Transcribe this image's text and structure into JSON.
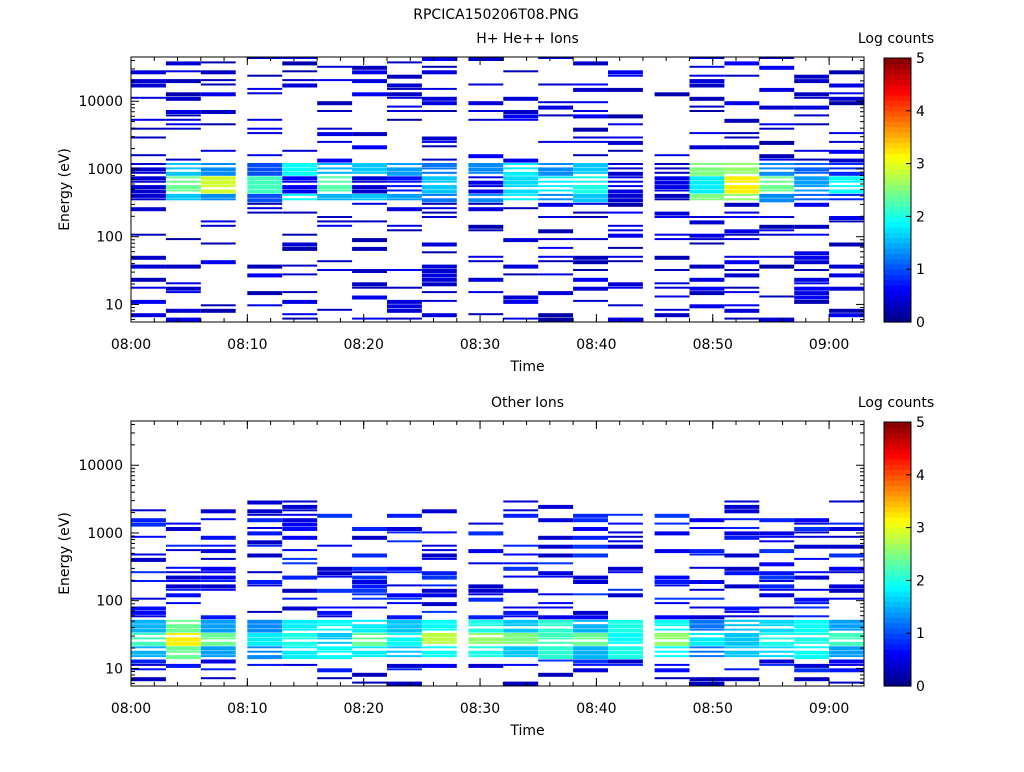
{
  "figure_title": "RPCICA150206T08.PNG",
  "colorscale": [
    "#00007f",
    "#0000ff",
    "#007fff",
    "#00ffff",
    "#7fff7f",
    "#ffff00",
    "#ff7f00",
    "#ff0000",
    "#7f0000"
  ],
  "chart_data": [
    {
      "type": "heatmap",
      "title": "H+ He++ Ions",
      "xlabel": "Time",
      "ylabel": "Energy (eV)",
      "yscale": "log",
      "ylim": [
        5.5,
        45000
      ],
      "xlim": [
        "08:00",
        "09:03"
      ],
      "xticks": [
        "08:00",
        "08:10",
        "08:20",
        "08:30",
        "08:40",
        "08:50",
        "09:00"
      ],
      "yticks": [
        "10",
        "100",
        "1000",
        "10000"
      ],
      "colorbar": {
        "label": "Log counts",
        "range": [
          0,
          5
        ],
        "ticks": [
          "0",
          "1",
          "2",
          "3",
          "4",
          "5"
        ]
      },
      "time_bins": [
        "08:00",
        "08:03",
        "08:06",
        "08:10",
        "08:13",
        "08:16",
        "08:19",
        "08:22",
        "08:25",
        "08:29",
        "08:32",
        "08:35",
        "08:38",
        "08:41",
        "08:45",
        "08:48",
        "08:51",
        "08:54",
        "08:57",
        "09:00"
      ],
      "band_values": [
        [
          0.4,
          1.6,
          1.3,
          1.0,
          1.9,
          1.5,
          1.6,
          1.4,
          1.2,
          1.3,
          1.8,
          1.3,
          1.6,
          0.4,
          0.3,
          2.5,
          2.6,
          1.3,
          1.1,
          0.8
        ],
        [
          0.4,
          2.4,
          2.9,
          2.2,
          0.6,
          2.3,
          0.4,
          0.7,
          1.6,
          0.5,
          1.7,
          1.8,
          2.0,
          0.5,
          0.5,
          1.8,
          3.2,
          2.4,
          1.4,
          1.9
        ]
      ]
    },
    {
      "type": "heatmap",
      "title": "Other Ions",
      "xlabel": "Time",
      "ylabel": "Energy (eV)",
      "yscale": "log",
      "ylim": [
        5.5,
        45000
      ],
      "xlim": [
        "08:00",
        "09:03"
      ],
      "xticks": [
        "08:00",
        "08:10",
        "08:20",
        "08:30",
        "08:40",
        "08:50",
        "09:00"
      ],
      "yticks": [
        "10",
        "100",
        "1000",
        "10000"
      ],
      "colorbar": {
        "label": "Log counts",
        "range": [
          0,
          5
        ],
        "ticks": [
          "0",
          "1",
          "2",
          "3",
          "4",
          "5"
        ]
      },
      "time_bins": [
        "08:00",
        "08:03",
        "08:06",
        "08:10",
        "08:13",
        "08:16",
        "08:19",
        "08:22",
        "08:25",
        "08:29",
        "08:32",
        "08:35",
        "08:38",
        "08:41",
        "08:45",
        "08:48",
        "08:51",
        "08:54",
        "08:57",
        "09:00"
      ],
      "band_values": [
        [
          2.2,
          3.2,
          2.4,
          1.8,
          2.0,
          1.6,
          2.4,
          1.9,
          2.8,
          2.6,
          2.5,
          2.2,
          2.4,
          1.9,
          2.6,
          1.8,
          1.6,
          2.0,
          2.0,
          2.2
        ],
        [
          1.9,
          2.8,
          1.8,
          1.7,
          2.2,
          2.3,
          2.2,
          2.0,
          2.3,
          2.4,
          2.0,
          2.5,
          1.9,
          2.4,
          2.3,
          1.6,
          2.0,
          2.1,
          2.3,
          1.8
        ]
      ]
    }
  ]
}
